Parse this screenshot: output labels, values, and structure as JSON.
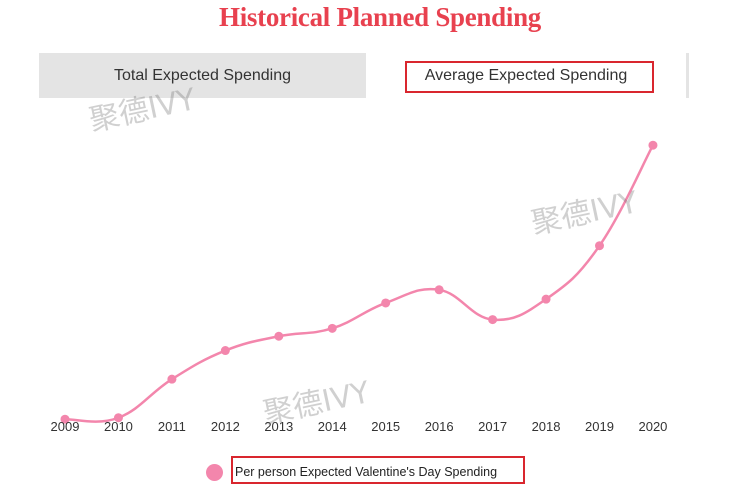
{
  "page_title": "Historical Planned Spending",
  "tabs": [
    {
      "label": "Total Expected Spending",
      "active": false
    },
    {
      "label": "Average Expected Spending",
      "active": true
    }
  ],
  "watermark": "聚德IVY",
  "colors": {
    "title": "#e8414f",
    "line": "#f386ac",
    "highlight": "#d9262e",
    "tabbar": "#e4e4e4"
  },
  "chart_data": {
    "type": "line",
    "title": "",
    "xlabel": "",
    "ylabel": "",
    "categories": [
      "2009",
      "2010",
      "2011",
      "2012",
      "2013",
      "2014",
      "2015",
      "2016",
      "2017",
      "2018",
      "2019",
      "2020"
    ],
    "series": [
      {
        "name": "Per person Expected Valentine's Day Spending",
        "values": [
          102.5,
          103.0,
          116.2,
          126.0,
          130.9,
          133.6,
          142.3,
          146.8,
          136.6,
          143.6,
          161.9,
          196.3
        ]
      }
    ],
    "ylim": [
      100,
      220
    ],
    "grid": false,
    "legend_position": "bottom"
  }
}
